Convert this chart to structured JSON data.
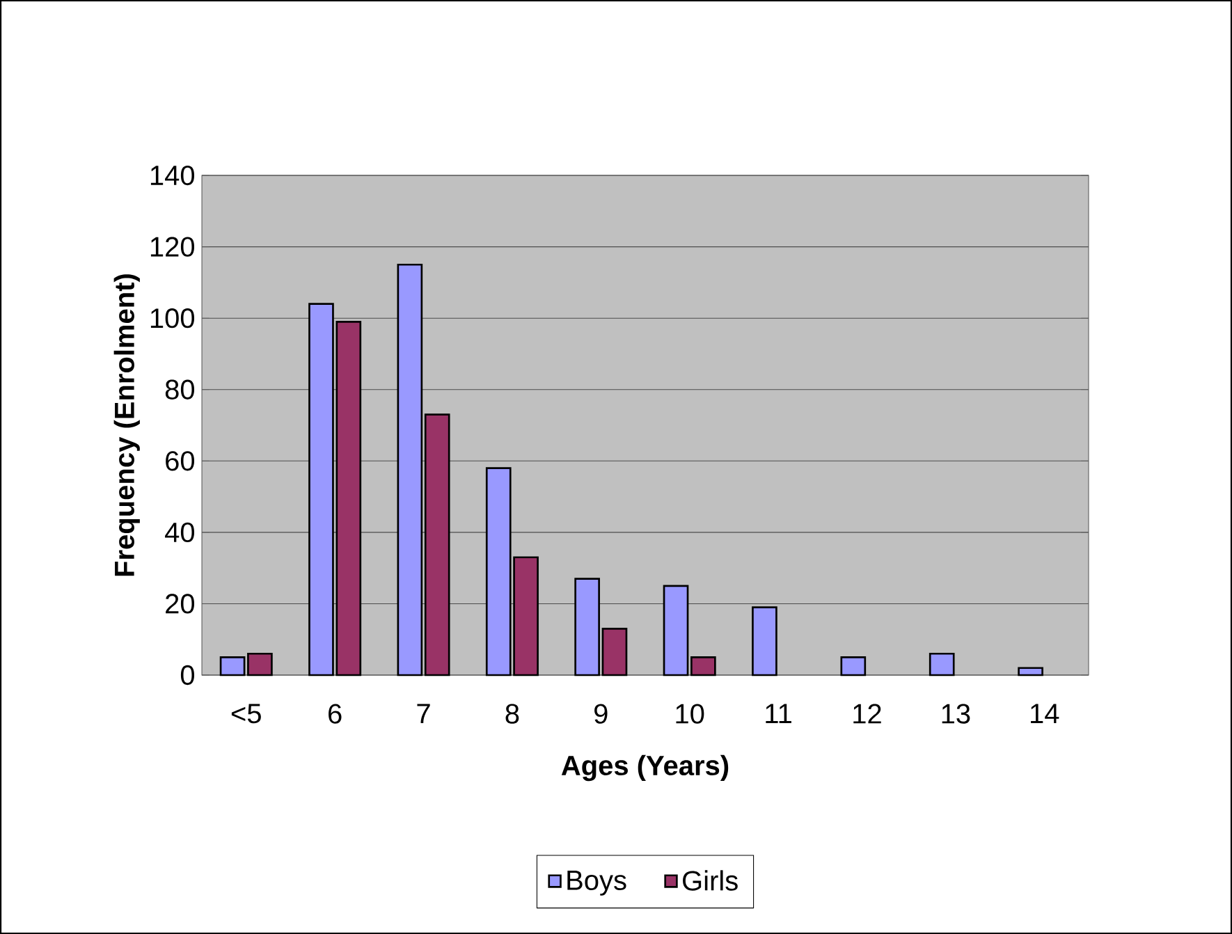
{
  "chart_data": {
    "type": "bar",
    "xlabel": "Ages (Years)",
    "ylabel": "Frequency (Enrolment)",
    "categories": [
      "<5",
      "6",
      "7",
      "8",
      "9",
      "10",
      "11",
      "12",
      "13",
      "14"
    ],
    "series": [
      {
        "name": "Boys",
        "color": "#9999ff",
        "values": [
          5,
          104,
          115,
          58,
          27,
          25,
          19,
          5,
          6,
          2
        ]
      },
      {
        "name": "Girls",
        "color": "#993366",
        "values": [
          6,
          99,
          73,
          33,
          13,
          5,
          null,
          null,
          null,
          null
        ]
      }
    ],
    "ylim": [
      0,
      140
    ],
    "yticks": [
      0,
      20,
      40,
      60,
      80,
      100,
      120,
      140
    ],
    "grid": "y",
    "legend": "bottom"
  }
}
